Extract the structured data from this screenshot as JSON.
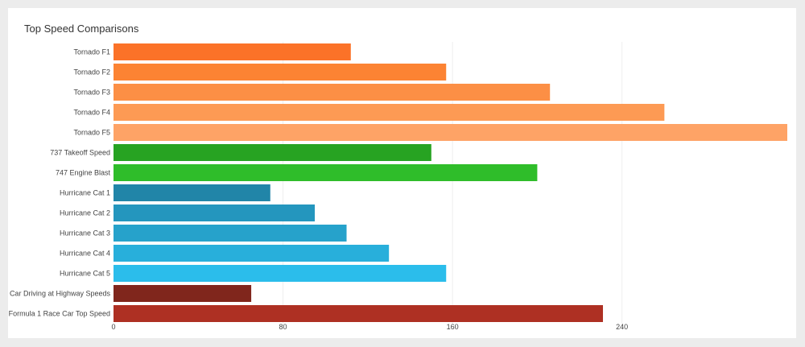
{
  "chart_data": {
    "type": "bar",
    "orientation": "horizontal",
    "title": "Top Speed Comparisons",
    "xlabel": "",
    "ylabel": "",
    "xlim": [
      0,
      318
    ],
    "xticks": [
      0,
      80,
      160,
      240
    ],
    "grid": "vertical",
    "categories": [
      "Tornado F1",
      "Tornado F2",
      "Tornado F3",
      "Tornado F4",
      "Tornado F5",
      "737 Takeoff Speed",
      "747 Engine Blast",
      "Hurricane Cat 1",
      "Hurricane Cat 2",
      "Hurricane Cat 3",
      "Hurricane Cat 4",
      "Hurricane Cat 5",
      "Car Driving at Highway Speeds",
      "Formula 1 Race Car Top Speed"
    ],
    "values": [
      112,
      157,
      206,
      260,
      318,
      150,
      200,
      74,
      95,
      110,
      130,
      157,
      65,
      231
    ],
    "colors": [
      "#fb7228",
      "#fc8333",
      "#fc8f45",
      "#fd9a54",
      "#fea366",
      "#27a322",
      "#2fbd2a",
      "#2185a8",
      "#2496be",
      "#26a2cb",
      "#28afdb",
      "#2bbdeb",
      "#80261c",
      "#ae3023"
    ]
  }
}
